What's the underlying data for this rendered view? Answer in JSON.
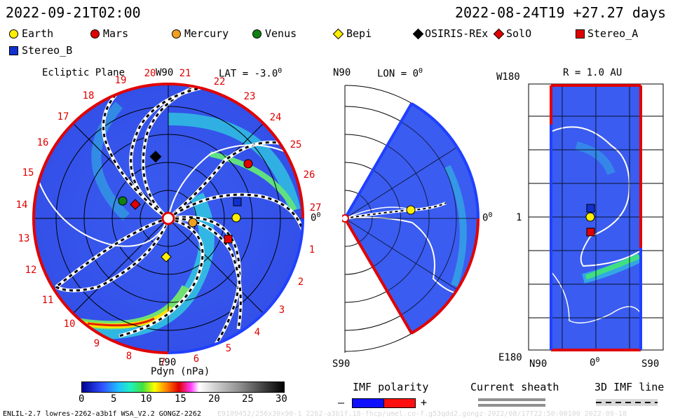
{
  "header": {
    "left_time": "2022-09-21T02:00",
    "right_time": "2022-08-24T19 +27.27 days"
  },
  "legend": [
    {
      "name": "Earth",
      "shape": "circle",
      "color": "#ffee00"
    },
    {
      "name": "Mars",
      "shape": "circle",
      "color": "#e00000"
    },
    {
      "name": "Mercury",
      "shape": "circle",
      "color": "#f0a020"
    },
    {
      "name": "Venus",
      "shape": "circle",
      "color": "#108010"
    },
    {
      "name": "Bepi",
      "shape": "diamond",
      "color": "#ffee00"
    },
    {
      "name": "OSIRIS-REx",
      "shape": "diamond",
      "color": "#000000"
    },
    {
      "name": "SolO",
      "shape": "diamond",
      "color": "#e00000"
    },
    {
      "name": "Stereo_A",
      "shape": "square",
      "color": "#e00000"
    },
    {
      "name": "Stereo_B",
      "shape": "square",
      "color": "#1030d0"
    }
  ],
  "panel_left": {
    "title": "Ecliptic Plane",
    "top_label": "W90",
    "lat_label": "LAT = -3.0",
    "lat_sup": "0",
    "bottom_label": "E90",
    "right_label": "0",
    "right_sup": "0",
    "ticks": [
      "19",
      "20",
      "21",
      "22",
      "23",
      "24",
      "25",
      "26",
      "27",
      "1",
      "2",
      "3",
      "4",
      "5",
      "6",
      "7",
      "8",
      "9",
      "10",
      "11",
      "12",
      "13",
      "14",
      "15",
      "16",
      "17",
      "18"
    ]
  },
  "panel_mid": {
    "top_left": "N90",
    "lon_label": "LON = 0",
    "lon_sup": "0",
    "right_label": "0",
    "right_sup": "0",
    "bottom_left": "S90"
  },
  "panel_right": {
    "r_label": "R = 1.0 AU",
    "top_left": "W180",
    "mid_left": "1",
    "bottom_left": "E180",
    "bottom_n": "N90",
    "bottom_0": "0",
    "bottom_0_sup": "0",
    "bottom_s": "S90"
  },
  "colorbar": {
    "title": "Pdyn (nPa)",
    "ticks": [
      "0",
      "5",
      "10",
      "15",
      "20",
      "25",
      "30"
    ]
  },
  "imf": {
    "title": "IMF polarity",
    "minus": "–",
    "plus": "+",
    "current_sheath": "Current sheath",
    "imf_line": "3D IMF line"
  },
  "footer": {
    "left": "ENLIL-2.7 lowres-2262-a3b1f WSA_V2.2 GONGZ-2262",
    "right": "E9109452/256x30x90-1 2262-a3b1f.18-fhcp/umel.co-f.g53qdd2.gongz-2022/08/17T22:50:00100   2022-09-18"
  }
}
